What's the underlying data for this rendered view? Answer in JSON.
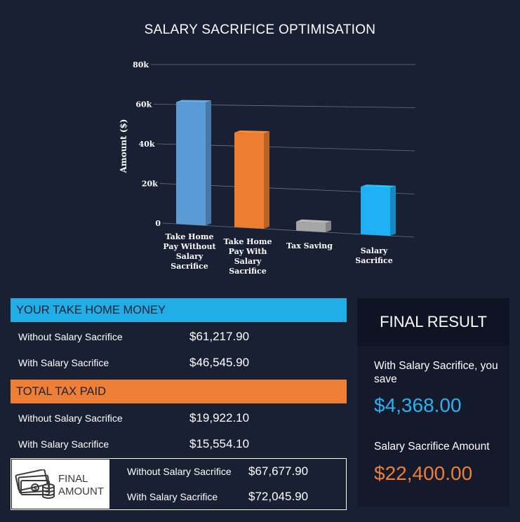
{
  "colors": {
    "background": "#1a2033",
    "blue": "#21aee6",
    "orange": "#ee7f35",
    "bar_blue": "#5b9bd5",
    "bar_orange": "#ed7d31",
    "bar_gray": "#a5a5a5",
    "bar_cyan": "#1fb0f5",
    "result_blue": "#2ab2ef"
  },
  "chart_data": {
    "type": "bar",
    "title": "SALARY SACRIFICE OPTIMISATION",
    "ylabel": "Amount ($)",
    "xlabel": "",
    "ylim": [
      0,
      80000
    ],
    "yticks": [
      "0",
      "20k",
      "40k",
      "60k",
      "80k"
    ],
    "grid": true,
    "categories": [
      [
        "Take Home",
        "Pay Without",
        "Salary",
        "Sacrifice"
      ],
      [
        "Take Home",
        "Pay With",
        "Salary",
        "Sacrifice"
      ],
      [
        "Tax Saving"
      ],
      [
        "Salary",
        "Sacrifice"
      ]
    ],
    "values": [
      61217.9,
      46545.9,
      4368.0,
      22400.0
    ],
    "bar_colors": [
      "#5b9bd5",
      "#ed7d31",
      "#a5a5a5",
      "#1fb0f5"
    ]
  },
  "take_home": {
    "header": "YOUR TAKE HOME MONEY",
    "rows": [
      {
        "label": "Without Salary Sacrifice",
        "value": "$61,217.90"
      },
      {
        "label": "With Salary Sacrifice",
        "value": "$46,545.90"
      }
    ]
  },
  "tax_paid": {
    "header": "TOTAL TAX PAID",
    "rows": [
      {
        "label": "Without Salary Sacrifice",
        "value": "$19,922.10"
      },
      {
        "label": "With Salary Sacrifice",
        "value": "$15,554.10"
      }
    ]
  },
  "final_amount": {
    "icon": "money-icon",
    "title_line1": "FINAL",
    "title_line2": "AMOUNT",
    "rows": [
      {
        "label": "Without Salary Sacrifice",
        "value": "$67,677.90"
      },
      {
        "label": "With Salary Sacrifice",
        "value": "$72,045.90"
      }
    ]
  },
  "final_result": {
    "header": "FINAL RESULT",
    "save_label": "With Salary Sacrifice, you save",
    "save_value": "$4,368.00",
    "amount_label": "Salary Sacrifice Amount",
    "amount_value": "$22,400.00"
  }
}
